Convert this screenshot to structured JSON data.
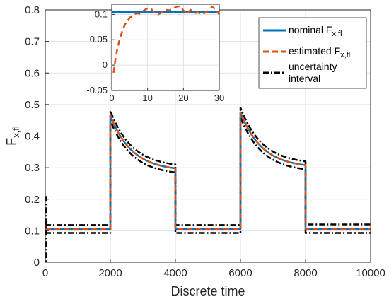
{
  "chart_data": [
    {
      "type": "line",
      "title": "",
      "xlabel": "Discrete time",
      "ylabel": "F",
      "ylabel_sub": "x,fl",
      "xlim": [
        0,
        10000
      ],
      "ylim": [
        0,
        0.8
      ],
      "xticks": [
        0,
        2000,
        4000,
        6000,
        8000,
        10000
      ],
      "yticks": [
        0,
        0.1,
        0.2,
        0.3,
        0.4,
        0.5,
        0.6,
        0.7,
        0.8
      ],
      "xtick_labels": [
        "0",
        "2000",
        "4000",
        "6000",
        "8000",
        "10000"
      ],
      "ytick_labels": [
        "0",
        "0.1",
        "0.2",
        "0.3",
        "0.4",
        "0.5",
        "0.6",
        "0.7",
        "0.8"
      ],
      "grid": true,
      "legend_position": "top-right",
      "series": [
        {
          "name": "nominal F",
          "name_sub": "x,fl",
          "color": "#0072BD",
          "style": "solid",
          "segments": [
            {
              "type": "const",
              "x0": 0,
              "x1": 2000,
              "y": 0.105
            },
            {
              "type": "decay",
              "x0": 2000,
              "x1": 4000,
              "y_start": 0.465,
              "y_end": 0.298
            },
            {
              "type": "const",
              "x0": 4000,
              "x1": 6000,
              "y": 0.105
            },
            {
              "type": "decay",
              "x0": 6000,
              "x1": 8000,
              "y_start": 0.475,
              "y_end": 0.308
            },
            {
              "type": "const",
              "x0": 8000,
              "x1": 10000,
              "y": 0.105
            }
          ]
        },
        {
          "name": "estimated F",
          "name_sub": "x,fl",
          "color": "#D95319",
          "style": "dashed",
          "segments": [
            {
              "type": "const",
              "x0": 0,
              "x1": 2000,
              "y": 0.105
            },
            {
              "type": "decay",
              "x0": 2000,
              "x1": 4000,
              "y_start": 0.465,
              "y_end": 0.298
            },
            {
              "type": "const",
              "x0": 4000,
              "x1": 6000,
              "y": 0.105
            },
            {
              "type": "decay",
              "x0": 6000,
              "x1": 8000,
              "y_start": 0.475,
              "y_end": 0.308
            },
            {
              "type": "const",
              "x0": 8000,
              "x1": 10000,
              "y": 0.105
            }
          ]
        },
        {
          "name": "uncertainty interval",
          "color": "#000000",
          "style": "dashdot",
          "upper_segments": [
            {
              "type": "const",
              "x0": 0,
              "x1": 2000,
              "y": 0.118
            },
            {
              "type": "decay",
              "x0": 2000,
              "x1": 4000,
              "y_start": 0.48,
              "y_end": 0.31
            },
            {
              "type": "const",
              "x0": 4000,
              "x1": 6000,
              "y": 0.118
            },
            {
              "type": "decay",
              "x0": 6000,
              "x1": 8000,
              "y_start": 0.49,
              "y_end": 0.32
            },
            {
              "type": "const",
              "x0": 8000,
              "x1": 10000,
              "y": 0.12
            }
          ],
          "lower_segments": [
            {
              "type": "const",
              "x0": 0,
              "x1": 2000,
              "y": 0.093
            },
            {
              "type": "decay",
              "x0": 2000,
              "x1": 4000,
              "y_start": 0.45,
              "y_end": 0.285
            },
            {
              "type": "const",
              "x0": 4000,
              "x1": 6000,
              "y": 0.093
            },
            {
              "type": "decay",
              "x0": 6000,
              "x1": 8000,
              "y_start": 0.46,
              "y_end": 0.295
            },
            {
              "type": "const",
              "x0": 8000,
              "x1": 10000,
              "y": 0.093
            }
          ],
          "initial_spike": {
            "x": 0,
            "y_high": 0.21,
            "y_low": 0
          }
        }
      ]
    },
    {
      "type": "line",
      "title": "",
      "xlabel": "",
      "ylabel": "",
      "xlim": [
        0,
        30
      ],
      "ylim": [
        -0.05,
        0.12
      ],
      "xticks": [
        0,
        10,
        20,
        30
      ],
      "yticks": [
        -0.05,
        0,
        0.05,
        0.1
      ],
      "xtick_labels": [
        "0",
        "10",
        "20",
        "30"
      ],
      "ytick_labels": [
        "-0.05",
        "0",
        "0.05",
        "0.1"
      ],
      "grid": true,
      "series": [
        {
          "name": "nominal",
          "color": "#0072BD",
          "style": "solid",
          "x": [
            0,
            30
          ],
          "y": [
            0.105,
            0.105
          ]
        },
        {
          "name": "estimated",
          "color": "#D95319",
          "style": "dashed",
          "x": [
            0.5,
            1,
            1.5,
            2,
            2.5,
            3,
            3.5,
            4,
            5,
            6,
            7,
            8,
            9,
            10,
            11,
            12,
            13,
            14,
            15,
            16,
            17,
            18,
            19,
            20,
            21,
            22,
            23,
            24,
            25,
            26,
            27,
            28,
            29,
            30
          ],
          "y": [
            -0.015,
            0.01,
            0.03,
            0.045,
            0.058,
            0.068,
            0.077,
            0.084,
            0.093,
            0.1,
            0.102,
            0.101,
            0.108,
            0.112,
            0.111,
            0.102,
            0.1,
            0.104,
            0.109,
            0.108,
            0.111,
            0.115,
            0.116,
            0.108,
            0.101,
            0.109,
            0.102,
            0.104,
            0.1,
            0.103,
            0.107,
            0.115,
            0.11,
            0.1
          ]
        }
      ]
    }
  ],
  "legend": {
    "entries": [
      {
        "label": "nominal F",
        "sub": "x,fl"
      },
      {
        "label": "estimated F",
        "sub": "x,fl"
      },
      {
        "label": "uncertainty",
        "label2": "interval"
      }
    ]
  },
  "colors": {
    "nominal": "#0072BD",
    "estimated": "#D95319",
    "uncertainty": "#000000"
  }
}
